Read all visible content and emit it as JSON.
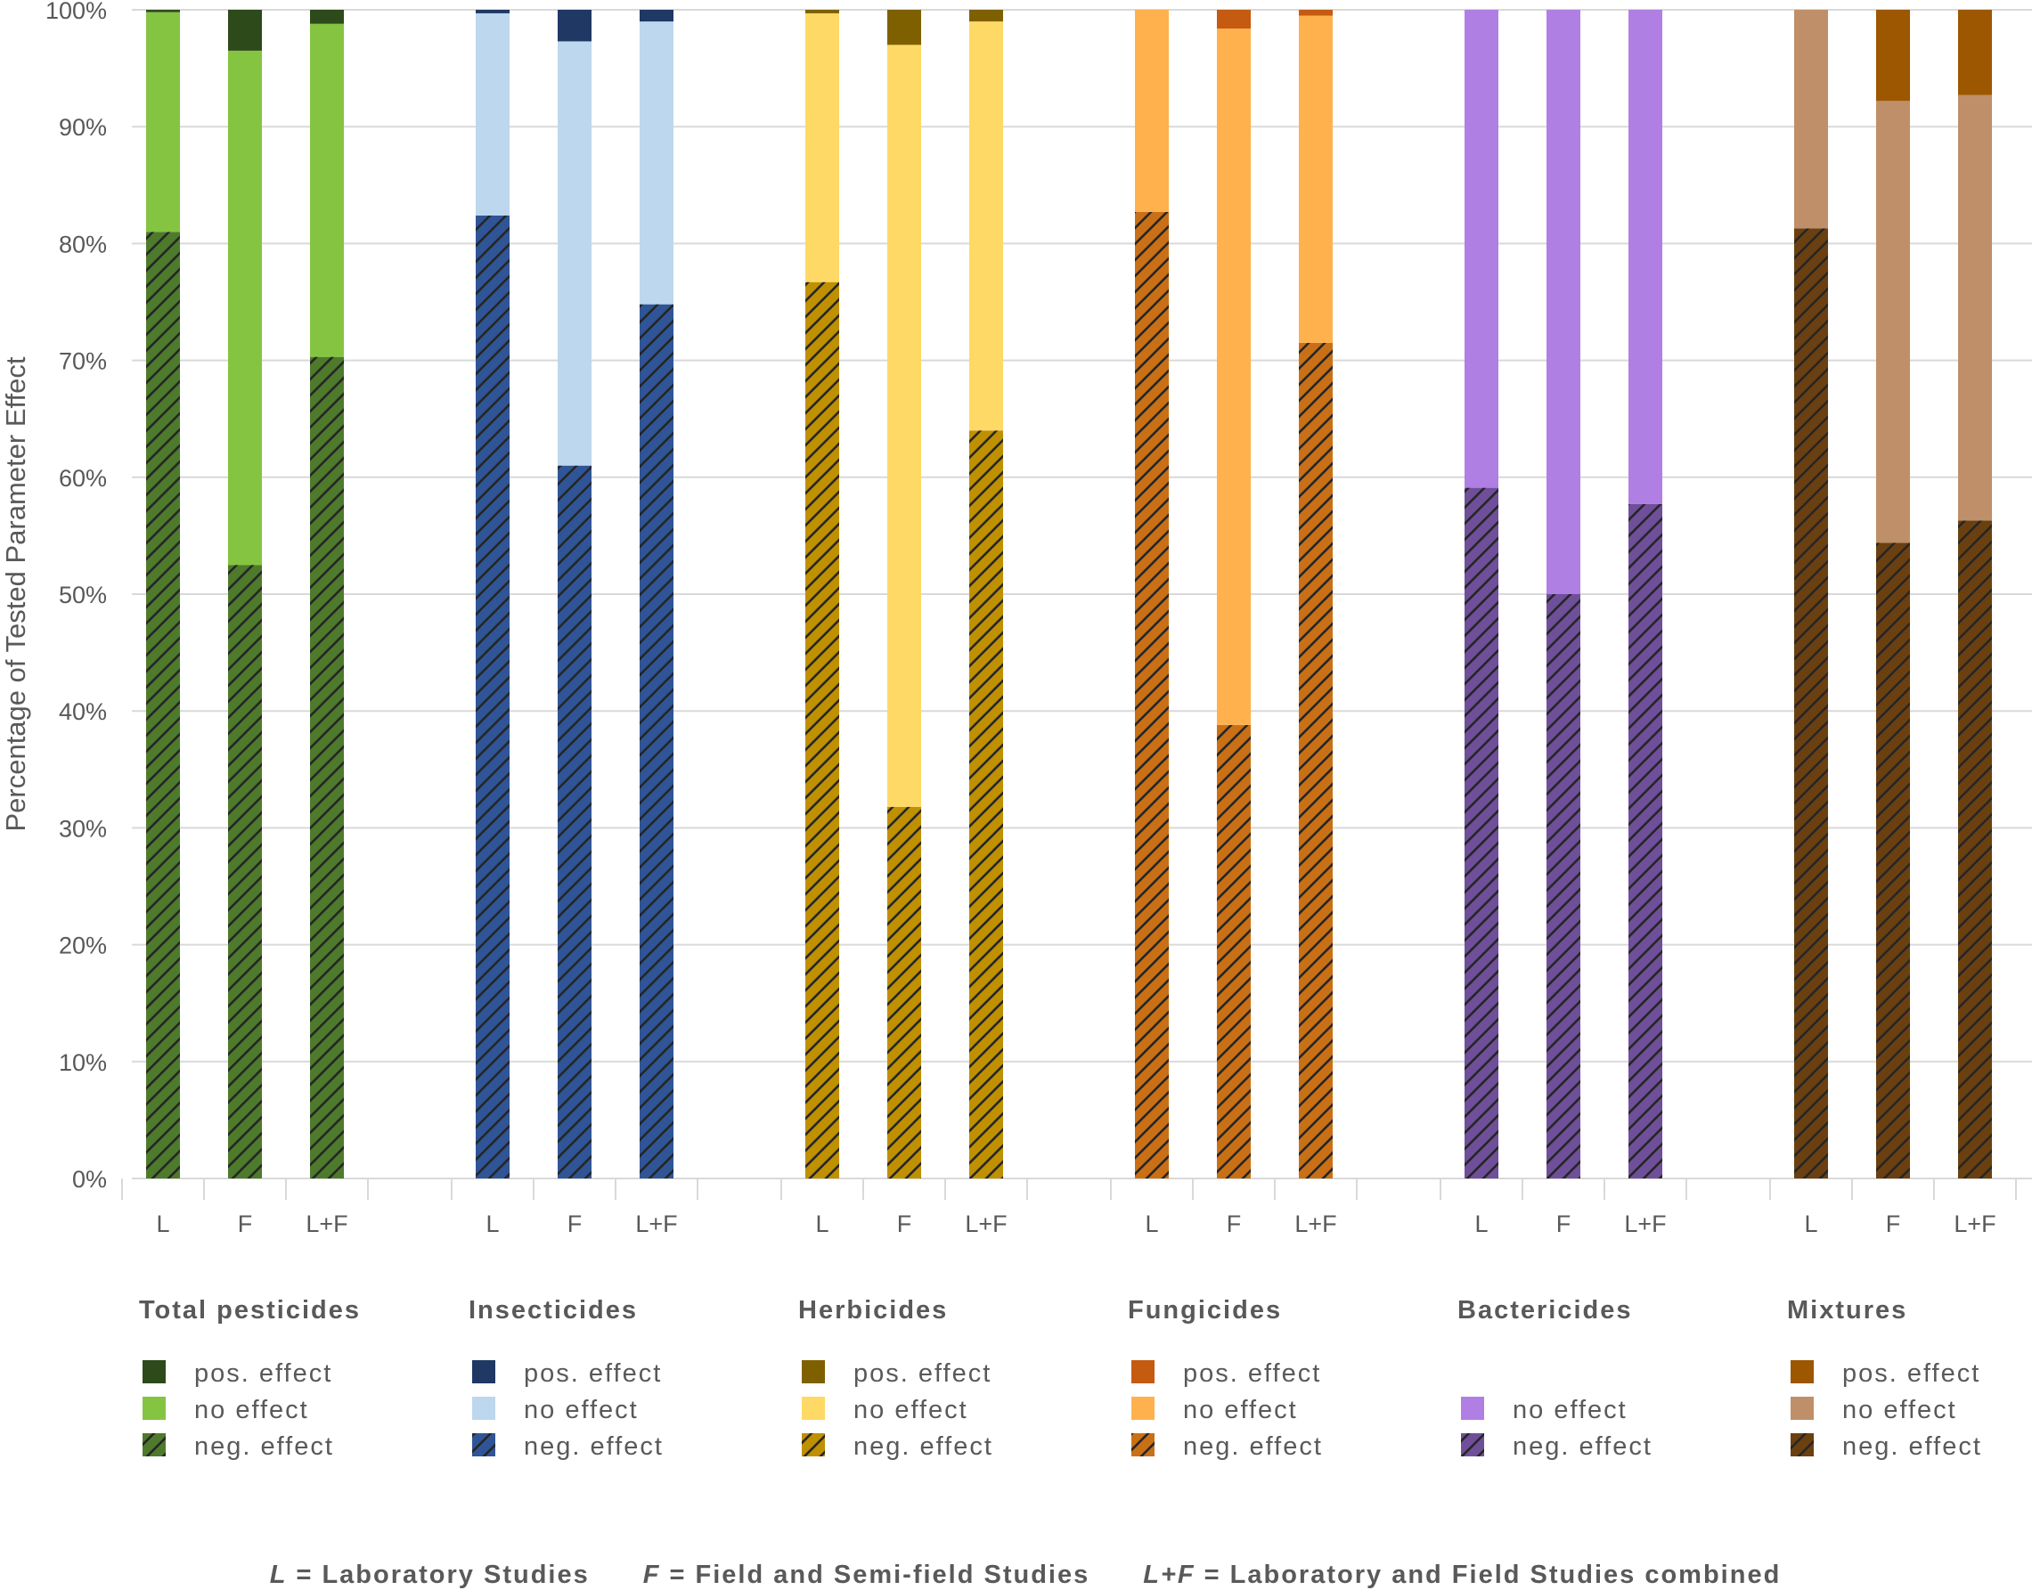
{
  "chart_data": {
    "type": "bar",
    "stacked": true,
    "normalized": true,
    "ylabel": "Percentage of Tested Parameter Effect",
    "ylim": [
      0,
      100
    ],
    "yticks": [
      "0%",
      "10%",
      "20%",
      "30%",
      "40%",
      "50%",
      "60%",
      "70%",
      "80%",
      "90%",
      "100%"
    ],
    "grid": true,
    "groups": [
      {
        "name": "Total pesticides",
        "colors": {
          "pos": "#2d4a1a",
          "no": "#85c441",
          "neg": "#4e7a2c"
        },
        "legend": [
          "pos. effect",
          "no effect",
          "neg. effect"
        ],
        "bars": [
          {
            "label": "L",
            "neg": 81.0,
            "no": 18.8,
            "pos": 0.2
          },
          {
            "label": "F",
            "neg": 52.5,
            "no": 44.0,
            "pos": 3.5
          },
          {
            "label": "L+F",
            "neg": 70.3,
            "no": 28.5,
            "pos": 1.2
          }
        ]
      },
      {
        "name": "Insecticides",
        "colors": {
          "pos": "#1f3864",
          "no": "#bdd7ee",
          "neg": "#2f5597"
        },
        "legend": [
          "pos. effect",
          "no effect",
          "neg. effect"
        ],
        "bars": [
          {
            "label": "L",
            "neg": 82.4,
            "no": 17.3,
            "pos": 0.3
          },
          {
            "label": "F",
            "neg": 61.0,
            "no": 36.3,
            "pos": 2.7
          },
          {
            "label": "L+F",
            "neg": 74.8,
            "no": 24.2,
            "pos": 1.0
          }
        ]
      },
      {
        "name": "Herbicides",
        "colors": {
          "pos": "#7f6000",
          "no": "#ffd966",
          "neg": "#bf9000"
        },
        "legend": [
          "pos. effect",
          "no effect",
          "neg. effect"
        ],
        "bars": [
          {
            "label": "L",
            "neg": 76.7,
            "no": 23.0,
            "pos": 0.3
          },
          {
            "label": "F",
            "neg": 31.8,
            "no": 65.2,
            "pos": 3.0
          },
          {
            "label": "L+F",
            "neg": 64.0,
            "no": 35.0,
            "pos": 1.0
          }
        ]
      },
      {
        "name": "Fungicides",
        "colors": {
          "pos": "#c55a11",
          "no": "#ffb14e",
          "neg": "#c97016"
        },
        "legend": [
          "pos. effect",
          "no effect",
          "neg. effect"
        ],
        "bars": [
          {
            "label": "L",
            "neg": 82.7,
            "no": 17.3,
            "pos": 0.0
          },
          {
            "label": "F",
            "neg": 38.8,
            "no": 59.6,
            "pos": 1.6
          },
          {
            "label": "L+F",
            "neg": 71.5,
            "no": 28.0,
            "pos": 0.5
          }
        ]
      },
      {
        "name": "Bactericides",
        "colors": {
          "no": "#b07fe3",
          "neg": "#6f4f9a"
        },
        "legend": [
          "no effect",
          "neg. effect"
        ],
        "bars": [
          {
            "label": "L",
            "neg": 59.1,
            "no": 40.9,
            "pos": 0.0
          },
          {
            "label": "F",
            "neg": 50.0,
            "no": 50.0,
            "pos": 0.0
          },
          {
            "label": "L+F",
            "neg": 57.7,
            "no": 42.3,
            "pos": 0.0
          }
        ]
      },
      {
        "name": "Mixtures",
        "colors": {
          "pos": "#9c5700",
          "no": "#bf8f69",
          "neg": "#6b4010"
        },
        "legend": [
          "pos. effect",
          "no effect",
          "neg. effect"
        ],
        "bars": [
          {
            "label": "L",
            "neg": 81.3,
            "no": 18.7,
            "pos": 0.0
          },
          {
            "label": "F",
            "neg": 54.4,
            "no": 37.8,
            "pos": 7.8
          },
          {
            "label": "L+F",
            "neg": 56.3,
            "no": 36.4,
            "pos": 7.3
          }
        ]
      }
    ],
    "footnote": [
      {
        "key": "L",
        "text": " = Laboratory Studies"
      },
      {
        "key": "F",
        "text": " = Field and Semi-field Studies"
      },
      {
        "key": "L+F",
        "text": " = Laboratory and Field Studies combined"
      }
    ]
  }
}
